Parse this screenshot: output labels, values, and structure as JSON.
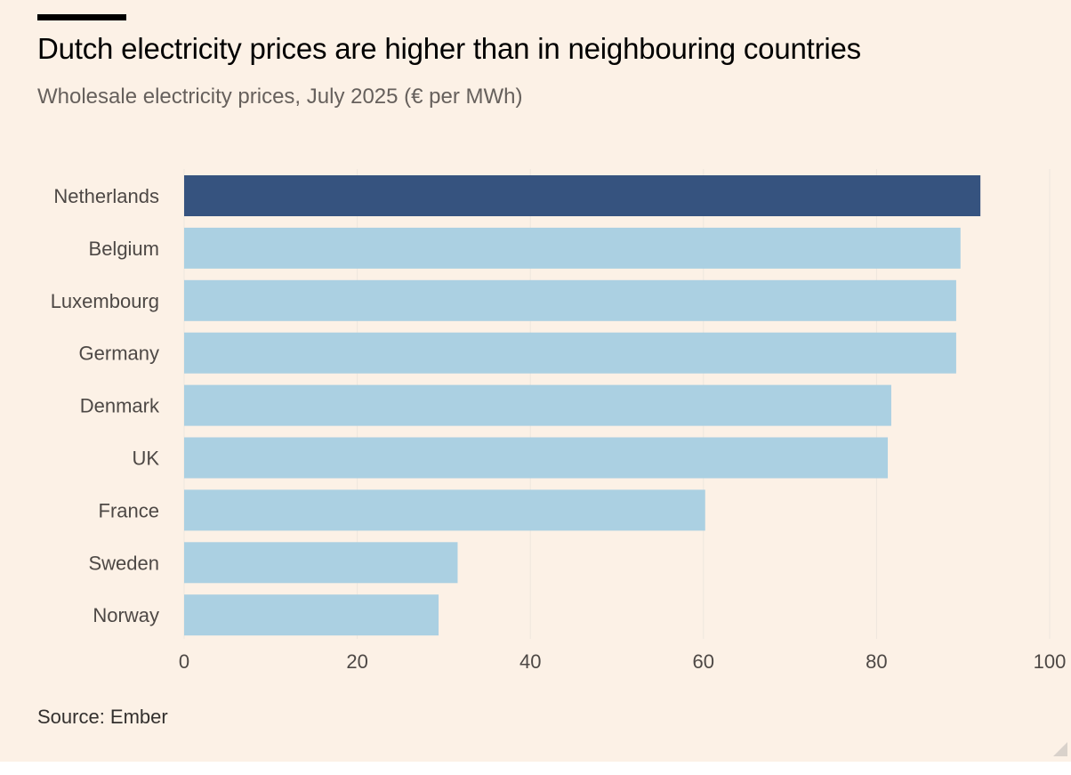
{
  "header": {
    "title": "Dutch electricity prices are higher than in neighbouring countries",
    "subtitle": "Wholesale electricity prices, July 2025 (€ per MWh)"
  },
  "footer": {
    "source": "Source: Ember"
  },
  "colors": {
    "background": "#fcf1e6",
    "highlight_bar": "#36537f",
    "bar": "#abd0e2",
    "grid": "#eee6dd"
  },
  "chart_data": {
    "type": "bar",
    "orientation": "horizontal",
    "categories": [
      "Netherlands",
      "Belgium",
      "Luxembourg",
      "Germany",
      "Denmark",
      "UK",
      "France",
      "Sweden",
      "Norway"
    ],
    "values": [
      92,
      89.7,
      89.2,
      89.2,
      81.7,
      81.3,
      60.2,
      31.6,
      29.4
    ],
    "highlight": "Netherlands",
    "xlim": [
      0,
      100
    ],
    "x_ticks": [
      0,
      20,
      40,
      60,
      80,
      100
    ],
    "title": "Dutch electricity prices are higher than in neighbouring countries",
    "subtitle": "Wholesale electricity prices, July 2025 (€ per MWh)",
    "xlabel": "",
    "ylabel": "",
    "grid": true,
    "legend": "none"
  }
}
